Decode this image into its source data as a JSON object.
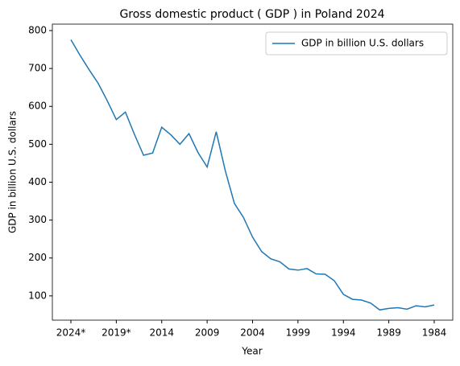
{
  "chart_data": {
    "type": "line",
    "title": "Gross domestic product ( GDP ) in Poland 2024",
    "x_label": "Year",
    "y_label": "GDP in billion U.S. dollars",
    "categories": [
      "2024*",
      null,
      null,
      null,
      null,
      "2019*",
      null,
      null,
      null,
      null,
      "2014",
      null,
      null,
      null,
      null,
      "2009",
      null,
      null,
      null,
      null,
      "2004",
      null,
      null,
      null,
      null,
      "1999",
      null,
      null,
      null,
      null,
      "1994",
      null,
      null,
      null,
      null,
      "1989",
      null,
      null,
      null,
      null,
      "1984"
    ],
    "series": [
      {
        "name": "GDP in billion U.S. dollars",
        "color": "#1f77b4",
        "values": [
          776,
          735,
          697,
          661,
          615,
          565,
          585,
          526,
          471,
          477,
          545,
          525,
          500,
          528,
          478,
          440,
          533,
          430,
          344,
          307,
          255,
          217,
          198,
          190,
          171,
          168,
          172,
          158,
          157,
          140,
          104,
          91,
          89,
          81,
          63,
          67,
          69,
          65,
          74,
          71,
          76
        ]
      }
    ],
    "ylim": [
      36,
      817
    ],
    "yticks": [
      100,
      200,
      300,
      400,
      500,
      600,
      700,
      800
    ],
    "legend": "upper right"
  }
}
